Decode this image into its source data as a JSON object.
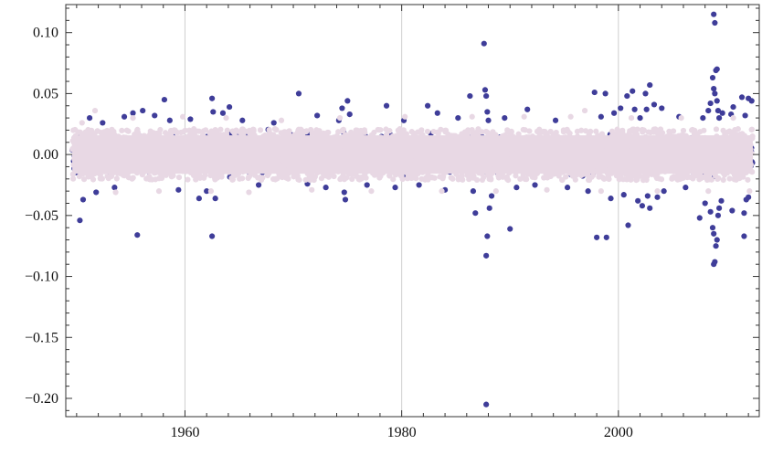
{
  "chart_data": {
    "type": "scatter",
    "title": "",
    "xlabel": "",
    "ylabel": "",
    "xlim": [
      1949,
      2013
    ],
    "ylim": [
      -0.215,
      0.123
    ],
    "grid": {
      "x": true,
      "y": false
    },
    "legend": "none",
    "x_ticks": [
      {
        "value": 1960,
        "label": "1960"
      },
      {
        "value": 1980,
        "label": "1980"
      },
      {
        "value": 2000,
        "label": "2000"
      }
    ],
    "y_ticks": [
      {
        "value": 0.1,
        "label": "0.10"
      },
      {
        "value": 0.05,
        "label": "0.05"
      },
      {
        "value": 0.0,
        "label": "0.00"
      },
      {
        "value": -0.05,
        "label": "−0.05"
      },
      {
        "value": -0.1,
        "label": "−0.10"
      },
      {
        "value": -0.15,
        "label": "−0.15"
      },
      {
        "value": -0.2,
        "label": "−0.20"
      }
    ],
    "x_minor_step": 2,
    "y_minor_step": 0.01,
    "series": [
      {
        "color": "#3f3d99",
        "points": [
          [
            1950.3,
            -0.054
          ],
          [
            1950.6,
            -0.037
          ],
          [
            1951.2,
            0.03
          ],
          [
            1951.8,
            -0.031
          ],
          [
            1952.4,
            0.026
          ],
          [
            1953.5,
            -0.027
          ],
          [
            1954.4,
            0.031
          ],
          [
            1955.6,
            -0.066
          ],
          [
            1956.1,
            0.036
          ],
          [
            1955.2,
            0.034
          ],
          [
            1957.2,
            0.032
          ],
          [
            1958.1,
            0.045
          ],
          [
            1958.6,
            0.028
          ],
          [
            1959.4,
            -0.029
          ],
          [
            1960.5,
            0.029
          ],
          [
            1961.3,
            -0.036
          ],
          [
            1962.0,
            -0.03
          ],
          [
            1962.5,
            0.046
          ],
          [
            1962.5,
            -0.067
          ],
          [
            1962.6,
            0.035
          ],
          [
            1962.8,
            -0.036
          ],
          [
            1963.5,
            0.034
          ],
          [
            1964.1,
            0.039
          ],
          [
            1965.3,
            0.028
          ],
          [
            1966.8,
            -0.025
          ],
          [
            1968.2,
            0.026
          ],
          [
            1970.5,
            0.05
          ],
          [
            1971.3,
            -0.024
          ],
          [
            1972.2,
            0.032
          ],
          [
            1973.0,
            -0.027
          ],
          [
            1974.2,
            0.028
          ],
          [
            1974.5,
            0.038
          ],
          [
            1974.7,
            -0.031
          ],
          [
            1975.0,
            0.044
          ],
          [
            1974.8,
            -0.037
          ],
          [
            1975.2,
            0.033
          ],
          [
            1976.8,
            -0.025
          ],
          [
            1978.6,
            0.04
          ],
          [
            1979.4,
            -0.027
          ],
          [
            1980.2,
            0.028
          ],
          [
            1981.6,
            -0.025
          ],
          [
            1982.4,
            0.04
          ],
          [
            1983.3,
            0.034
          ],
          [
            1984.0,
            -0.029
          ],
          [
            1985.2,
            0.03
          ],
          [
            1986.3,
            0.048
          ],
          [
            1986.6,
            -0.03
          ],
          [
            1986.8,
            -0.048
          ],
          [
            1987.6,
            0.091
          ],
          [
            1987.7,
            0.053
          ],
          [
            1987.8,
            0.048
          ],
          [
            1987.9,
            -0.067
          ],
          [
            1987.8,
            -0.083
          ],
          [
            1987.8,
            -0.205
          ],
          [
            1987.9,
            0.035
          ],
          [
            1988.1,
            -0.044
          ],
          [
            1988.0,
            0.028
          ],
          [
            1988.3,
            -0.034
          ],
          [
            1989.5,
            0.03
          ],
          [
            1990.0,
            -0.061
          ],
          [
            1990.6,
            -0.027
          ],
          [
            1991.6,
            0.037
          ],
          [
            1992.3,
            -0.025
          ],
          [
            1994.2,
            0.028
          ],
          [
            1995.3,
            -0.027
          ],
          [
            1997.2,
            -0.03
          ],
          [
            1997.8,
            0.051
          ],
          [
            1998.0,
            -0.068
          ],
          [
            1998.4,
            0.031
          ],
          [
            1998.8,
            0.05
          ],
          [
            1998.9,
            -0.068
          ],
          [
            1999.3,
            -0.036
          ],
          [
            1999.6,
            0.034
          ],
          [
            2000.2,
            0.038
          ],
          [
            2000.5,
            -0.033
          ],
          [
            2000.8,
            0.048
          ],
          [
            2000.9,
            -0.058
          ],
          [
            2001.3,
            0.052
          ],
          [
            2001.5,
            0.037
          ],
          [
            2001.8,
            -0.038
          ],
          [
            2002.0,
            0.03
          ],
          [
            2002.2,
            -0.042
          ],
          [
            2002.5,
            0.05
          ],
          [
            2002.6,
            0.037
          ],
          [
            2002.7,
            -0.034
          ],
          [
            2002.9,
            0.057
          ],
          [
            2002.9,
            -0.044
          ],
          [
            2003.3,
            0.041
          ],
          [
            2003.6,
            -0.035
          ],
          [
            2004.0,
            0.038
          ],
          [
            2004.2,
            -0.03
          ],
          [
            2005.6,
            0.031
          ],
          [
            2006.2,
            -0.027
          ],
          [
            2007.5,
            -0.052
          ],
          [
            2007.8,
            0.03
          ],
          [
            2008.0,
            -0.04
          ],
          [
            2008.3,
            0.036
          ],
          [
            2008.5,
            -0.047
          ],
          [
            2008.5,
            0.042
          ],
          [
            2008.7,
            0.063
          ],
          [
            2008.7,
            -0.06
          ],
          [
            2008.8,
            0.054
          ],
          [
            2008.8,
            -0.065
          ],
          [
            2008.8,
            -0.09
          ],
          [
            2008.8,
            0.115
          ],
          [
            2008.9,
            0.108
          ],
          [
            2008.9,
            -0.088
          ],
          [
            2008.9,
            0.05
          ],
          [
            2009.0,
            -0.075
          ],
          [
            2009.0,
            0.069
          ],
          [
            2009.1,
            0.07
          ],
          [
            2009.1,
            -0.07
          ],
          [
            2009.1,
            0.044
          ],
          [
            2009.2,
            -0.05
          ],
          [
            2009.2,
            0.036
          ],
          [
            2009.3,
            -0.044
          ],
          [
            2009.3,
            0.03
          ],
          [
            2009.5,
            -0.038
          ],
          [
            2009.6,
            0.034
          ],
          [
            2010.4,
            0.033
          ],
          [
            2010.5,
            -0.046
          ],
          [
            2010.6,
            0.039
          ],
          [
            2011.4,
            0.047
          ],
          [
            2011.6,
            -0.067
          ],
          [
            2011.6,
            -0.048
          ],
          [
            2011.7,
            0.032
          ],
          [
            2011.8,
            -0.037
          ],
          [
            2012.0,
            0.046
          ],
          [
            2012.0,
            -0.035
          ],
          [
            2012.3,
            0.044
          ]
        ]
      },
      {
        "color": "#e8d8e4",
        "points": [
          [
            1950.5,
            0.026
          ],
          [
            1951.7,
            0.036
          ],
          [
            1953.6,
            -0.031
          ],
          [
            1955.2,
            0.03
          ],
          [
            1957.6,
            -0.03
          ],
          [
            1959.8,
            0.031
          ],
          [
            1962.4,
            -0.03
          ],
          [
            1963.8,
            0.03
          ],
          [
            1965.9,
            -0.031
          ],
          [
            1968.9,
            0.028
          ],
          [
            1971.7,
            -0.029
          ],
          [
            1974.3,
            0.03
          ],
          [
            1977.2,
            -0.03
          ],
          [
            1980.3,
            0.031
          ],
          [
            1983.7,
            -0.03
          ],
          [
            1986.5,
            0.031
          ],
          [
            1988.7,
            -0.03
          ],
          [
            1991.3,
            0.031
          ],
          [
            1993.4,
            -0.029
          ],
          [
            1995.6,
            0.031
          ],
          [
            1996.9,
            0.036
          ],
          [
            1998.4,
            -0.03
          ],
          [
            2001.2,
            0.03
          ],
          [
            2003.6,
            -0.03
          ],
          [
            2005.8,
            0.03
          ],
          [
            2008.3,
            -0.03
          ],
          [
            2010.6,
            0.03
          ],
          [
            2012.1,
            -0.03
          ]
        ],
        "band": {
          "x_range": [
            1949.6,
            2012.4
          ],
          "y_halfwidth": 0.021
        }
      }
    ]
  }
}
